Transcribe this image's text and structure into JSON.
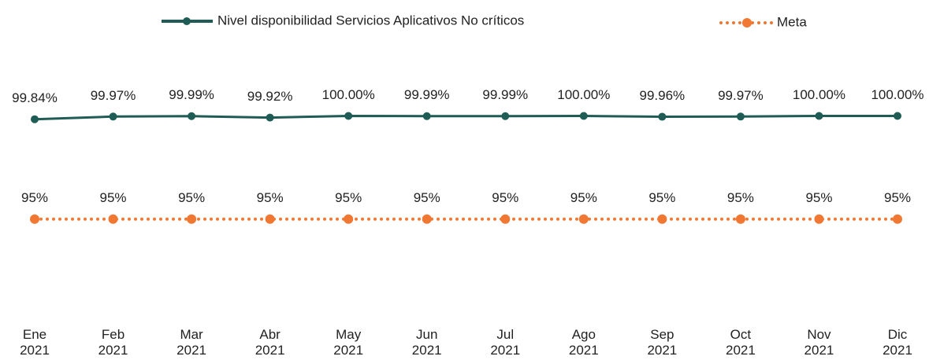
{
  "chart_data": {
    "type": "line",
    "categories": [
      "Ene 2021",
      "Feb 2021",
      "Mar 2021",
      "Abr 2021",
      "May 2021",
      "Jun 2021",
      "Jul 2021",
      "Ago 2021",
      "Sep 2021",
      "Oct 2021",
      "Nov 2021",
      "Dic 2021"
    ],
    "series": [
      {
        "name": "Nivel disponibilidad Servicios Aplicativos No críticos",
        "color": "#1f5c55",
        "style": "solid",
        "values": [
          99.84,
          99.97,
          99.99,
          99.92,
          100.0,
          99.99,
          99.99,
          100.0,
          99.96,
          99.97,
          100.0,
          100.0
        ],
        "value_labels": [
          "99.84%",
          "99.97%",
          "99.99%",
          "99.92%",
          "100.00%",
          "99.99%",
          "99.99%",
          "100.00%",
          "99.96%",
          "99.97%",
          "100.00%",
          "100.00%"
        ]
      },
      {
        "name": "Meta",
        "color": "#f07832",
        "style": "dotted",
        "values": [
          95,
          95,
          95,
          95,
          95,
          95,
          95,
          95,
          95,
          95,
          95,
          95
        ],
        "value_labels": [
          "95%",
          "95%",
          "95%",
          "95%",
          "95%",
          "95%",
          "95%",
          "95%",
          "95%",
          "95%",
          "95%",
          "95%"
        ]
      }
    ],
    "ylim": [
      90,
      102
    ],
    "legend": "top"
  }
}
